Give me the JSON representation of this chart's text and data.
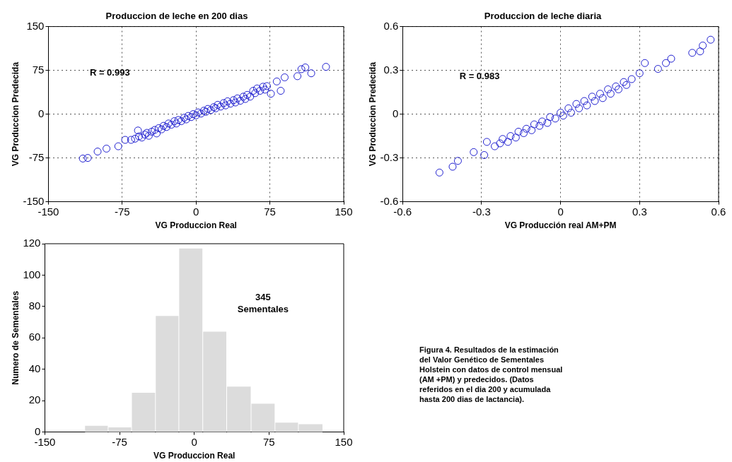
{
  "chart_data": [
    {
      "type": "scatter",
      "title": "Produccion de leche en 200 dias",
      "xlabel": "VG Produccion Real",
      "ylabel": "VG Produccion Predecida",
      "xlim": [
        -150,
        150
      ],
      "ylim": [
        -150,
        150
      ],
      "xticks": [
        -150,
        -75,
        0,
        75,
        150
      ],
      "yticks": [
        -150,
        -75,
        0,
        75,
        150
      ],
      "grid": true,
      "marker": "circle",
      "annotations": [
        "R = 0.993"
      ],
      "series": [
        {
          "color": "#1f1fd0",
          "x": [
            -115,
            -110,
            -100,
            -91,
            -79,
            -72,
            -66,
            -59,
            -62,
            -58,
            -55,
            -52,
            -50,
            -48,
            -45,
            -42,
            -40,
            -38,
            -35,
            -33,
            -30,
            -28,
            -25,
            -22,
            -20,
            -18,
            -15,
            -12,
            -10,
            -8,
            -5,
            -3,
            0,
            2,
            5,
            8,
            10,
            12,
            15,
            18,
            20,
            22,
            25,
            28,
            30,
            32,
            35,
            38,
            40,
            42,
            45,
            48,
            50,
            52,
            55,
            58,
            60,
            62,
            65,
            68,
            70,
            72,
            76,
            82,
            86,
            90,
            103,
            107,
            111,
            117,
            132
          ],
          "values": [
            -76,
            -75,
            -64,
            -59,
            -55,
            -44,
            -44,
            -28,
            -42,
            -38,
            -40,
            -35,
            -32,
            -37,
            -30,
            -27,
            -33,
            -24,
            -26,
            -20,
            -22,
            -16,
            -18,
            -12,
            -16,
            -10,
            -12,
            -6,
            -9,
            -3,
            -5,
            0,
            -2,
            3,
            1,
            6,
            4,
            9,
            7,
            12,
            10,
            16,
            13,
            19,
            15,
            22,
            18,
            24,
            20,
            27,
            23,
            30,
            26,
            33,
            30,
            40,
            36,
            44,
            40,
            47,
            42,
            48,
            35,
            56,
            40,
            63,
            65,
            77,
            80,
            70,
            81
          ]
        }
      ]
    },
    {
      "type": "scatter",
      "title": "Produccion de leche diaria",
      "xlabel": "VG Producción real AM+PM",
      "ylabel": "VG Produccion Predecida",
      "xlim": [
        -0.6,
        0.6
      ],
      "ylim": [
        -0.6,
        0.6
      ],
      "xticks": [
        -0.6,
        -0.3,
        0,
        0.3,
        0.6
      ],
      "yticks": [
        -0.6,
        -0.3,
        0,
        0.3,
        0.6
      ],
      "grid": true,
      "marker": "circle",
      "annotations": [
        "R = 0.983"
      ],
      "series": [
        {
          "color": "#1f1fd0",
          "x": [
            -0.46,
            -0.41,
            -0.39,
            -0.33,
            -0.29,
            -0.28,
            -0.25,
            -0.23,
            -0.22,
            -0.2,
            -0.19,
            -0.17,
            -0.16,
            -0.14,
            -0.13,
            -0.11,
            -0.1,
            -0.08,
            -0.07,
            -0.05,
            -0.04,
            -0.02,
            0,
            0.01,
            0.03,
            0.04,
            0.06,
            0.07,
            0.09,
            0.1,
            0.12,
            0.13,
            0.15,
            0.16,
            0.18,
            0.19,
            0.21,
            0.22,
            0.24,
            0.25,
            0.27,
            0.3,
            0.32,
            0.37,
            0.4,
            0.42,
            0.5,
            0.53,
            0.54,
            0.57
          ],
          "values": [
            -0.4,
            -0.36,
            -0.32,
            -0.26,
            -0.28,
            -0.19,
            -0.22,
            -0.2,
            -0.17,
            -0.19,
            -0.15,
            -0.16,
            -0.12,
            -0.13,
            -0.1,
            -0.11,
            -0.07,
            -0.08,
            -0.05,
            -0.06,
            -0.02,
            -0.03,
            0.01,
            -0.01,
            0.04,
            0.01,
            0.07,
            0.04,
            0.09,
            0.06,
            0.12,
            0.09,
            0.14,
            0.11,
            0.17,
            0.14,
            0.19,
            0.17,
            0.22,
            0.2,
            0.24,
            0.28,
            0.35,
            0.31,
            0.35,
            0.38,
            0.42,
            0.43,
            0.47,
            0.51
          ]
        }
      ]
    },
    {
      "type": "histogram",
      "xlabel": "VG Produccion Real",
      "ylabel": "Numero de Sementales",
      "xlim": [
        -150,
        150
      ],
      "ylim": [
        0,
        120
      ],
      "xticks": [
        -150,
        -75,
        0,
        75,
        150
      ],
      "yticks": [
        0,
        20,
        40,
        60,
        80,
        100,
        120
      ],
      "color": "#dcdcdc",
      "annotations": [
        "345\nSementales"
      ],
      "bins": [
        -110,
        -86.5,
        -63,
        -39,
        -15.5,
        8.5,
        32.5,
        57,
        81,
        104.5,
        129
      ],
      "values": [
        4,
        3,
        25,
        74,
        117,
        64,
        29,
        18,
        6,
        5
      ]
    },
    {
      "type": "other",
      "annotations": [
        "Figura 4. Resultados de la estimación del Valor Genético de Sementales Holstein con datos de control mensual (AM +PM)  y predecidos. (Datos referidos en el dia 200 y acumulada hasta 200 dias de lactancia)."
      ]
    }
  ]
}
